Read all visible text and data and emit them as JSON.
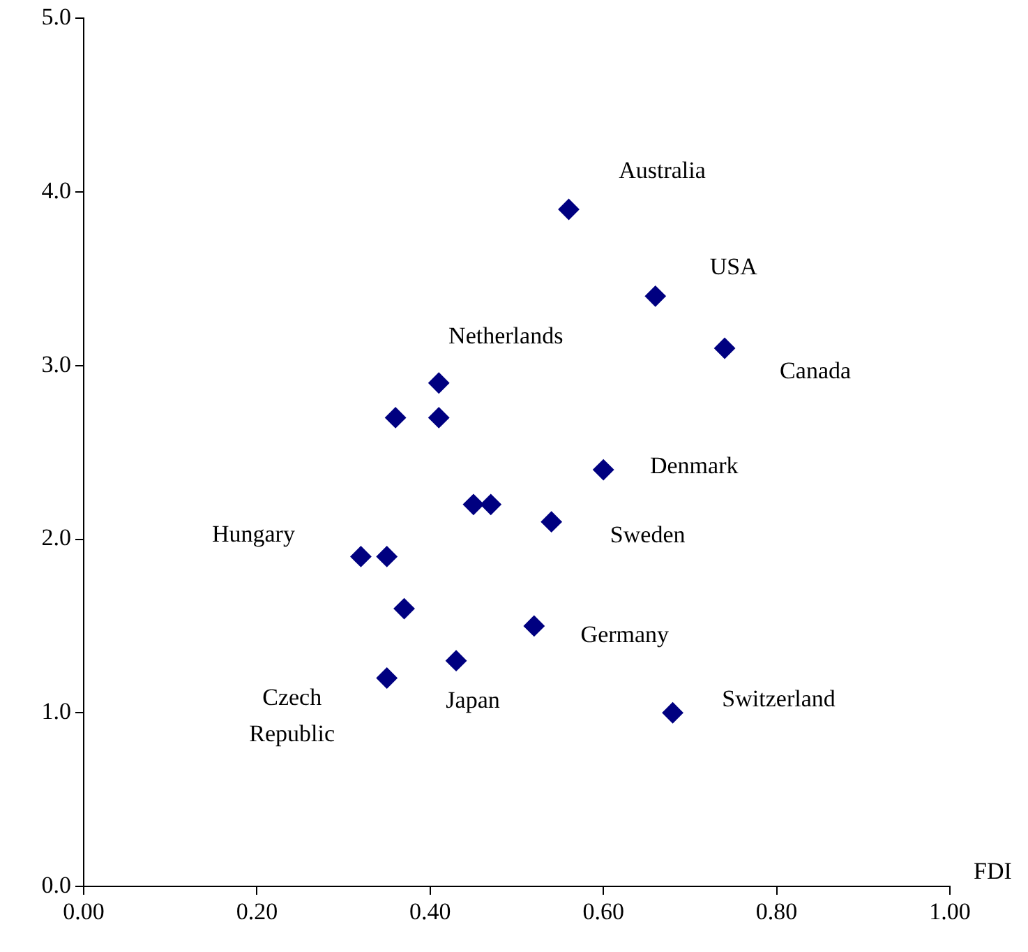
{
  "chart_data": {
    "type": "scatter",
    "xlabel": "FDI",
    "marker": "diamond",
    "grid": false,
    "legend": false,
    "xlim": [
      0,
      1
    ],
    "xticks": [
      {
        "value": 0,
        "label": "0.00"
      },
      {
        "value": 0.2,
        "label": "0.20"
      },
      {
        "value": 0.4,
        "label": "0.40"
      },
      {
        "value": 0.6,
        "label": "0.60"
      },
      {
        "value": 0.8,
        "label": "0.80"
      },
      {
        "value": 1,
        "label": "1.00"
      }
    ],
    "ylim": [
      0,
      5
    ],
    "yticks": [
      {
        "value": 0,
        "label": "0.0"
      },
      {
        "value": 1,
        "label": "1.0"
      },
      {
        "value": 2,
        "label": "2.0"
      },
      {
        "value": 3,
        "label": "3.0"
      },
      {
        "value": 4,
        "label": "4.0"
      },
      {
        "value": 5,
        "label": "5.0"
      }
    ],
    "series": [
      {
        "color": "#000080",
        "x": [
          0.56,
          0.66,
          0.74,
          0.41,
          0.36,
          0.41,
          0.6,
          0.45,
          0.47,
          0.54,
          0.32,
          0.35,
          0.37,
          0.52,
          0.43,
          0.35,
          0.68
        ],
        "values": [
          3.9,
          3.4,
          3.1,
          2.9,
          2.7,
          2.7,
          2.4,
          2.2,
          2.2,
          2.1,
          1.9,
          1.9,
          1.6,
          1.5,
          1.3,
          1.2,
          1.0
        ]
      }
    ],
    "annotations": [
      {
        "text": "Australia",
        "x": 0.56,
        "y": 3.9
      },
      {
        "text": "USA",
        "x": 0.66,
        "y": 3.4
      },
      {
        "text": "Canada",
        "x": 0.74,
        "y": 3.1
      },
      {
        "text": "Netherlands",
        "x": 0.41,
        "y": 2.9
      },
      {
        "text": "Denmark",
        "x": 0.6,
        "y": 2.4
      },
      {
        "text": "Sweden",
        "x": 0.54,
        "y": 2.1
      },
      {
        "text": "Hungary",
        "x": 0.32,
        "y": 1.9
      },
      {
        "text": "Germany",
        "x": 0.52,
        "y": 1.5
      },
      {
        "text": "Japan",
        "x": 0.43,
        "y": 1.3
      },
      {
        "text": "Switzerland",
        "x": 0.68,
        "y": 1.0
      },
      {
        "text": "Czech\nRepublic",
        "x": 0.35,
        "y": 1.2
      }
    ]
  }
}
